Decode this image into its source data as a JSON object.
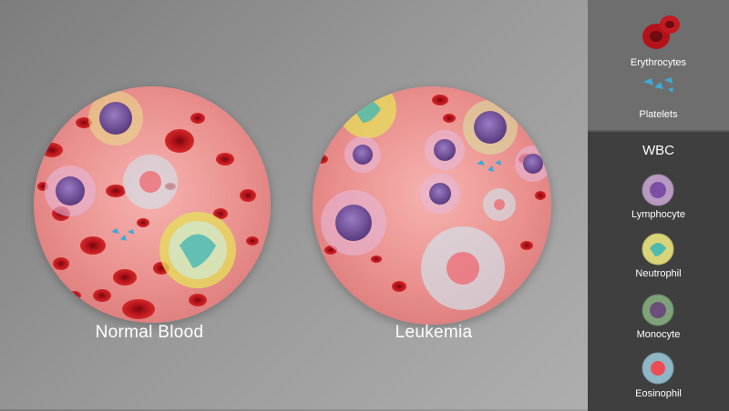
{
  "panels": [
    {
      "caption": "Normal Blood"
    },
    {
      "caption": "Leukemia"
    }
  ],
  "legend": {
    "top_items": [
      {
        "label": "Erythrocytes",
        "icon": "erythrocyte-icon"
      },
      {
        "label": "Platelets",
        "icon": "platelet-icon"
      }
    ],
    "wbc_title": "WBC",
    "wbc_items": [
      {
        "label": "Lymphocyte",
        "icon": "lymphocyte-icon",
        "color": "#b89ac0"
      },
      {
        "label": "Neutrophil",
        "icon": "neutrophil-icon",
        "color": "#d8d47a"
      },
      {
        "label": "Monocyte",
        "icon": "monocyte-icon",
        "color": "#7fa27a"
      },
      {
        "label": "Eosinophil",
        "icon": "eosinophil-icon",
        "color": "#8fb6c4"
      }
    ]
  },
  "colors": {
    "rbc": "#b3121a",
    "platelet": "#3fa9d8",
    "nucleus": "#7b4fa6"
  }
}
